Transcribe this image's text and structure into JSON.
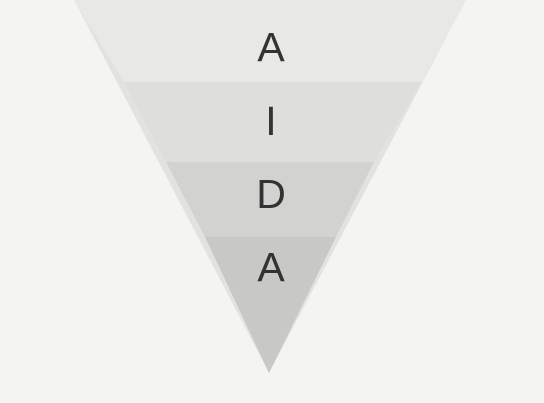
{
  "funnel": {
    "stages": [
      {
        "letter": "A",
        "color": "#e8e8e6"
      },
      {
        "letter": "I",
        "color": "#dededc"
      },
      {
        "letter": "D",
        "color": "#d2d2d0"
      },
      {
        "letter": "A",
        "color": "#c8c8c6"
      }
    ],
    "outline_color": "#e2e2e0",
    "background": "#f4f4f2"
  }
}
